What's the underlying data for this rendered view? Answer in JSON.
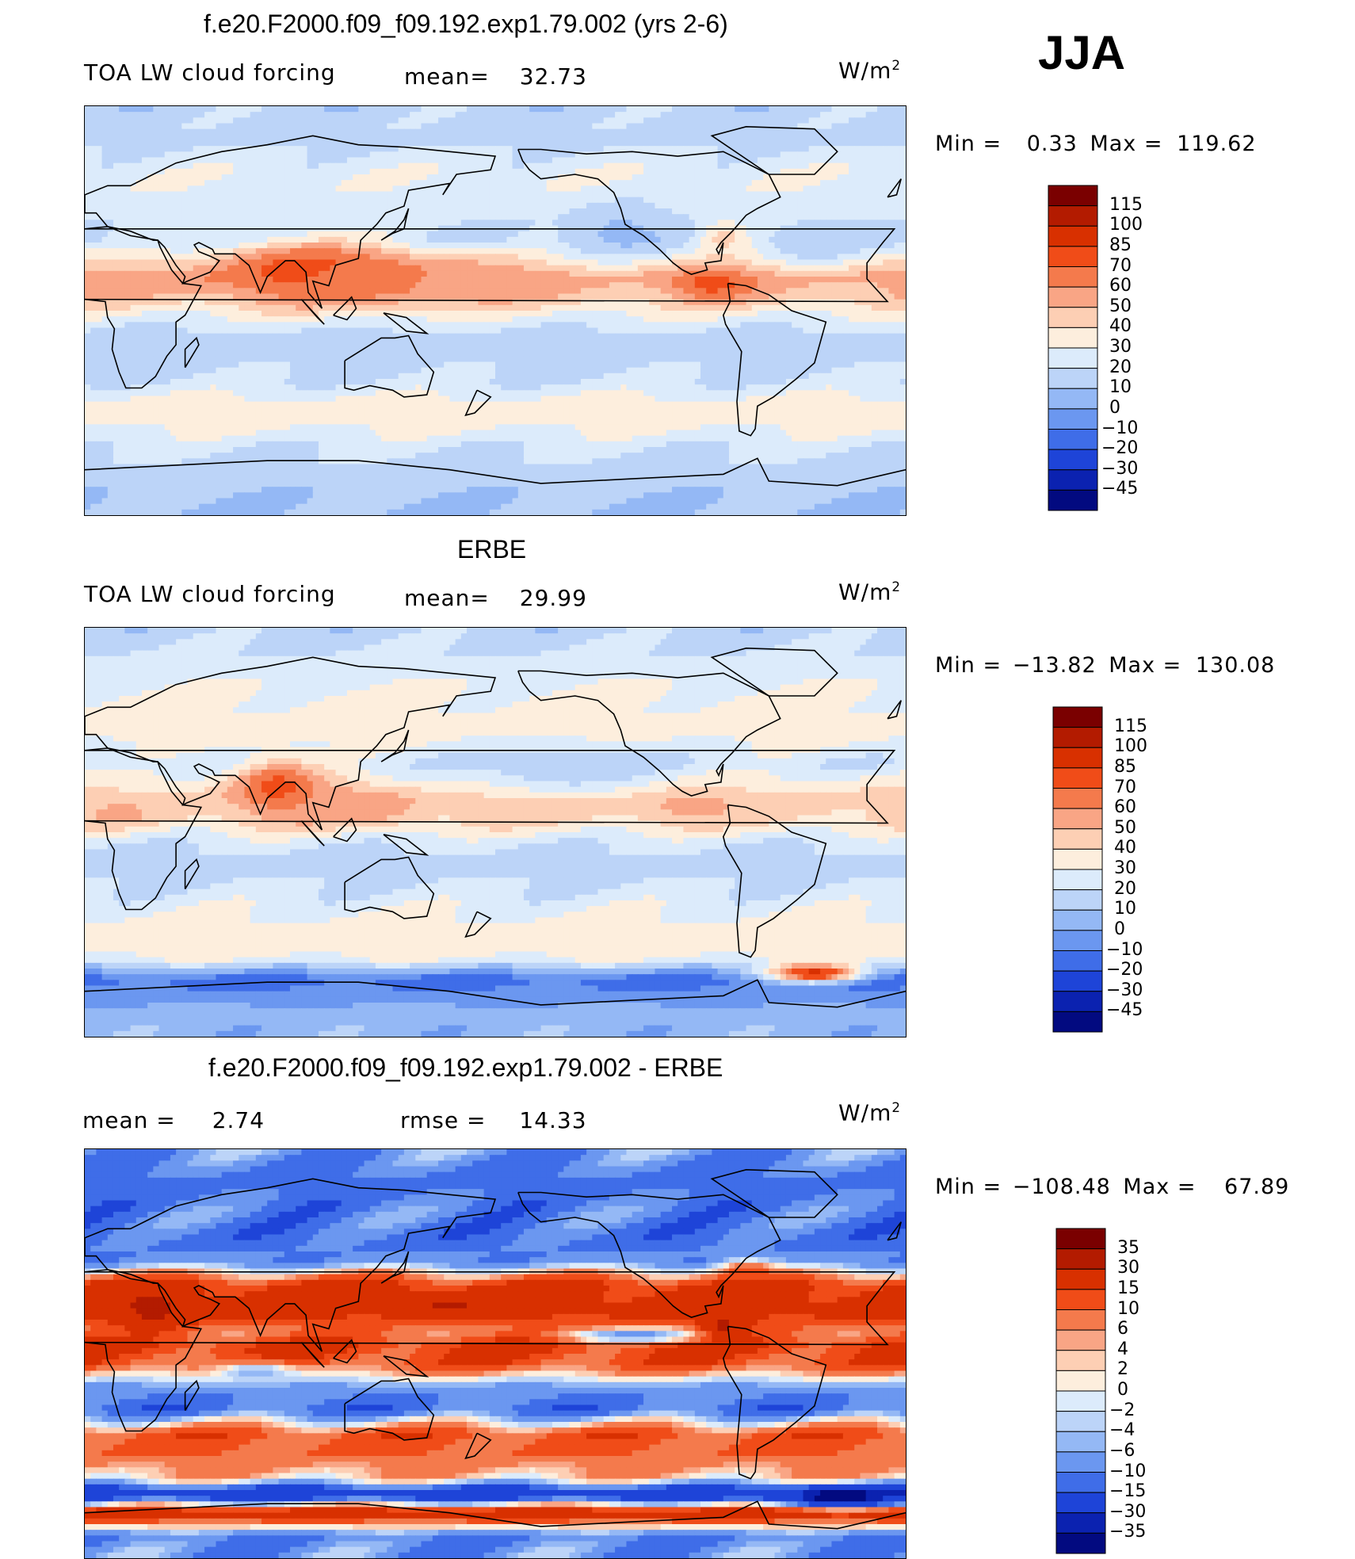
{
  "season": "JJA",
  "units": "W/m",
  "units_exp": "2",
  "panels": [
    {
      "title": "f.e20.F2000.f09_f09.192.exp1.79.002 (yrs 2-6)",
      "left_label": "TOA LW cloud forcing",
      "mid_label": "mean=",
      "mid_value": "32.73",
      "min_label": "Min",
      "min_value": "0.33",
      "max_label": "Max",
      "max_value": "119.62"
    },
    {
      "title": "ERBE",
      "left_label": "TOA LW cloud forcing",
      "mid_label": "mean=",
      "mid_value": "29.99",
      "min_label": "Min",
      "min_value": "−13.82",
      "max_label": "Max",
      "max_value": "130.08"
    },
    {
      "title": "f.e20.F2000.f09_f09.192.exp1.79.002 - ERBE",
      "left_label": "mean =",
      "left_value": "2.74",
      "mid_label": "rmse =",
      "mid_value": "14.33",
      "min_label": "Min",
      "min_value": "−108.48",
      "max_label": "Max",
      "max_value": "67.89"
    }
  ],
  "chart_data": [
    {
      "type": "heatmap",
      "title": "f.e20.F2000.f09_f09.192.exp1.79.002 (yrs 2-6)",
      "variable": "TOA LW cloud forcing",
      "mean": 32.73,
      "min": 0.33,
      "max": 119.62,
      "colorbar_levels": [
        "115",
        "100",
        "85",
        "70",
        "60",
        "50",
        "40",
        "30",
        "20",
        "10",
        "0",
        "−10",
        "−20",
        "−30",
        "−45"
      ],
      "colorbar_colors": [
        "#7a0000",
        "#b31b00",
        "#d83000",
        "#f04c18",
        "#f47a4c",
        "#f9a585",
        "#fdcfb4",
        "#fdeedd",
        "#dcebfb",
        "#bcd4f8",
        "#94b8f5",
        "#6b97f0",
        "#3f6de8",
        "#1e44d8",
        "#0b22b0",
        "#020a80"
      ],
      "bands": [
        {
          "lat": 90,
          "value": 15
        },
        {
          "lat": 75,
          "value": 18
        },
        {
          "lat": 60,
          "value": 28
        },
        {
          "lat": 45,
          "value": 25
        },
        {
          "lat": 30,
          "value": 18
        },
        {
          "lat": 15,
          "value": 55
        },
        {
          "lat": 5,
          "value": 45
        },
        {
          "lat": -5,
          "value": 25
        },
        {
          "lat": -15,
          "value": 12
        },
        {
          "lat": -30,
          "value": 20
        },
        {
          "lat": -45,
          "value": 38
        },
        {
          "lat": -60,
          "value": 22
        },
        {
          "lat": -75,
          "value": 12
        },
        {
          "lat": -90,
          "value": 10
        }
      ],
      "blobs": [
        {
          "lon": 100,
          "lat": 18,
          "rx": 40,
          "ry": 12,
          "value": 80
        },
        {
          "lon": 130,
          "lat": 14,
          "rx": 45,
          "ry": 10,
          "value": 65
        },
        {
          "lon": 170,
          "lat": 12,
          "rx": 25,
          "ry": 7,
          "value": 55
        },
        {
          "lon": 275,
          "lat": 12,
          "rx": 18,
          "ry": 7,
          "value": 75
        },
        {
          "lon": 280,
          "lat": 32,
          "rx": 12,
          "ry": 8,
          "value": 45
        },
        {
          "lon": 10,
          "lat": 10,
          "rx": 18,
          "ry": 5,
          "value": 55
        },
        {
          "lon": 235,
          "lat": 35,
          "rx": 25,
          "ry": 12,
          "value": 8
        },
        {
          "lon": 320,
          "lat": 30,
          "rx": 20,
          "ry": 10,
          "value": 12
        }
      ]
    },
    {
      "type": "heatmap",
      "title": "ERBE",
      "variable": "TOA LW cloud forcing",
      "mean": 29.99,
      "min": -13.82,
      "max": 130.08,
      "colorbar_levels": [
        "115",
        "100",
        "85",
        "70",
        "60",
        "50",
        "40",
        "30",
        "20",
        "10",
        "0",
        "−10",
        "−20",
        "−30",
        "−45"
      ],
      "colorbar_colors": [
        "#7a0000",
        "#b31b00",
        "#d83000",
        "#f04c18",
        "#f47a4c",
        "#f9a585",
        "#fdcfb4",
        "#fdeedd",
        "#dcebfb",
        "#bcd4f8",
        "#94b8f5",
        "#6b97f0",
        "#3f6de8",
        "#1e44d8",
        "#0b22b0",
        "#020a80"
      ],
      "bands": [
        {
          "lat": 90,
          "value": 15
        },
        {
          "lat": 75,
          "value": 22
        },
        {
          "lat": 60,
          "value": 32
        },
        {
          "lat": 45,
          "value": 35
        },
        {
          "lat": 30,
          "value": 22
        },
        {
          "lat": 15,
          "value": 45
        },
        {
          "lat": 5,
          "value": 42
        },
        {
          "lat": -5,
          "value": 22
        },
        {
          "lat": -15,
          "value": 15
        },
        {
          "lat": -30,
          "value": 25
        },
        {
          "lat": -45,
          "value": 36
        },
        {
          "lat": -55,
          "value": 33
        },
        {
          "lat": -65,
          "value": -15
        },
        {
          "lat": -80,
          "value": 5
        },
        {
          "lat": -90,
          "value": 5
        }
      ],
      "blobs": [
        {
          "lon": 85,
          "lat": 20,
          "rx": 20,
          "ry": 12,
          "value": 75
        },
        {
          "lon": 120,
          "lat": 12,
          "rx": 25,
          "ry": 8,
          "value": 60
        },
        {
          "lon": 265,
          "lat": 12,
          "rx": 20,
          "ry": 6,
          "value": 55
        },
        {
          "lon": 15,
          "lat": 8,
          "rx": 12,
          "ry": 5,
          "value": 55
        },
        {
          "lon": 210,
          "lat": 28,
          "rx": 40,
          "ry": 10,
          "value": 12
        },
        {
          "lon": 320,
          "lat": -62,
          "rx": 20,
          "ry": 4,
          "value": 90
        }
      ]
    },
    {
      "type": "heatmap",
      "title": "f.e20.F2000.f09_f09.192.exp1.79.002 - ERBE",
      "variable": "difference",
      "mean": 2.74,
      "rmse": 14.33,
      "min": -108.48,
      "max": 67.89,
      "colorbar_levels": [
        "35",
        "30",
        "15",
        "10",
        "6",
        "4",
        "2",
        "0",
        "−2",
        "−4",
        "−6",
        "−10",
        "−15",
        "−30",
        "−35"
      ],
      "colorbar_colors": [
        "#7a0000",
        "#b31b00",
        "#d83000",
        "#f04c18",
        "#f47a4c",
        "#f9a585",
        "#fdcfb4",
        "#fdeedd",
        "#dcebfb",
        "#bcd4f8",
        "#94b8f5",
        "#6b97f0",
        "#3f6de8",
        "#1e44d8",
        "#0b22b0",
        "#020a80"
      ],
      "bands": [
        {
          "lat": 90,
          "value": -8
        },
        {
          "lat": 75,
          "value": -12
        },
        {
          "lat": 60,
          "value": -10
        },
        {
          "lat": 50,
          "value": -12
        },
        {
          "lat": 40,
          "value": -8
        },
        {
          "lat": 30,
          "value": 18
        },
        {
          "lat": 20,
          "value": 20
        },
        {
          "lat": 10,
          "value": 8
        },
        {
          "lat": 3,
          "value": 16
        },
        {
          "lat": -5,
          "value": 12
        },
        {
          "lat": -15,
          "value": -8
        },
        {
          "lat": -25,
          "value": -12
        },
        {
          "lat": -35,
          "value": 12
        },
        {
          "lat": -45,
          "value": 10
        },
        {
          "lat": -55,
          "value": 3
        },
        {
          "lat": -62,
          "value": -25
        },
        {
          "lat": -70,
          "value": 22
        },
        {
          "lat": -80,
          "value": -10
        },
        {
          "lat": -90,
          "value": -8
        }
      ],
      "blobs": [
        {
          "lon": 30,
          "lat": 20,
          "rx": 15,
          "ry": 8,
          "value": 35
        },
        {
          "lon": 160,
          "lat": 22,
          "rx": 20,
          "ry": 4,
          "value": 32
        },
        {
          "lon": 280,
          "lat": 12,
          "rx": 10,
          "ry": 5,
          "value": 35
        },
        {
          "lon": 290,
          "lat": 35,
          "rx": 12,
          "ry": 6,
          "value": 15
        },
        {
          "lon": 330,
          "lat": -63,
          "rx": 25,
          "ry": 4,
          "value": -40
        },
        {
          "lon": 240,
          "lat": 8,
          "rx": 30,
          "ry": 3,
          "value": -8
        },
        {
          "lon": 75,
          "lat": -8,
          "rx": 20,
          "ry": 5,
          "value": -6
        }
      ]
    }
  ]
}
